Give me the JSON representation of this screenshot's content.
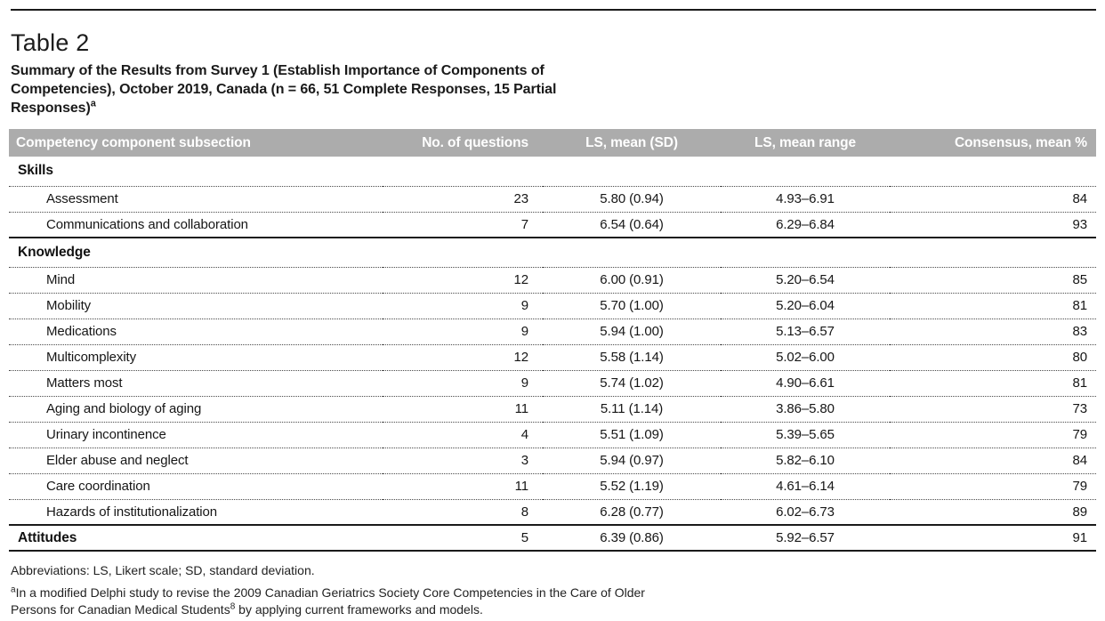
{
  "header": {
    "label": "Table 2",
    "caption_line1": "Summary of the Results from Survey 1 (Establish Importance of Components of",
    "caption_line2": "Competencies), October 2019, Canada (n = 66, 51 Complete Responses, 15 Partial",
    "caption_line3": "Responses)",
    "caption_note": "a"
  },
  "table": {
    "columns": [
      "Competency component subsection",
      "No. of questions",
      "LS, mean (SD)",
      "LS, mean range",
      "Consensus, mean %"
    ],
    "rows": [
      {
        "kind": "section",
        "label": "Skills"
      },
      {
        "kind": "item",
        "label": "Assessment",
        "questions": "23",
        "ls_mean_sd": "5.80 (0.94)",
        "ls_mean_range": "4.93–6.91",
        "consensus": "84"
      },
      {
        "kind": "item",
        "label": "Communications and collaboration",
        "questions": "7",
        "ls_mean_sd": "6.54 (0.64)",
        "ls_mean_range": "6.29–6.84",
        "consensus": "93"
      },
      {
        "kind": "section",
        "label": "Knowledge"
      },
      {
        "kind": "item",
        "label": "Mind",
        "questions": "12",
        "ls_mean_sd": "6.00 (0.91)",
        "ls_mean_range": "5.20–6.54",
        "consensus": "85"
      },
      {
        "kind": "item",
        "label": "Mobility",
        "questions": "9",
        "ls_mean_sd": "5.70 (1.00)",
        "ls_mean_range": "5.20–6.04",
        "consensus": "81"
      },
      {
        "kind": "item",
        "label": "Medications",
        "questions": "9",
        "ls_mean_sd": "5.94 (1.00)",
        "ls_mean_range": "5.13–6.57",
        "consensus": "83"
      },
      {
        "kind": "item",
        "label": "Multicomplexity",
        "questions": "12",
        "ls_mean_sd": "5.58 (1.14)",
        "ls_mean_range": "5.02–6.00",
        "consensus": "80"
      },
      {
        "kind": "item",
        "label": "Matters most",
        "questions": "9",
        "ls_mean_sd": "5.74 (1.02)",
        "ls_mean_range": "4.90–6.61",
        "consensus": "81"
      },
      {
        "kind": "item",
        "label": "Aging and biology of aging",
        "questions": "11",
        "ls_mean_sd": "5.11 (1.14)",
        "ls_mean_range": "3.86–5.80",
        "consensus": "73"
      },
      {
        "kind": "item",
        "label": "Urinary incontinence",
        "questions": "4",
        "ls_mean_sd": "5.51 (1.09)",
        "ls_mean_range": "5.39–5.65",
        "consensus": "79"
      },
      {
        "kind": "item",
        "label": "Elder abuse and neglect",
        "questions": "3",
        "ls_mean_sd": "5.94 (0.97)",
        "ls_mean_range": "5.82–6.10",
        "consensus": "84"
      },
      {
        "kind": "item",
        "label": "Care coordination",
        "questions": "11",
        "ls_mean_sd": "5.52 (1.19)",
        "ls_mean_range": "4.61–6.14",
        "consensus": "79"
      },
      {
        "kind": "item",
        "label": "Hazards of institutionalization",
        "questions": "8",
        "ls_mean_sd": "6.28 (0.77)",
        "ls_mean_range": "6.02–6.73",
        "consensus": "89"
      },
      {
        "kind": "section-data",
        "label": "Attitudes",
        "questions": "5",
        "ls_mean_sd": "6.39 (0.86)",
        "ls_mean_range": "5.92–6.57",
        "consensus": "91"
      }
    ]
  },
  "footnotes": {
    "abbreviations": "Abbreviations: LS, Likert scale; SD, standard deviation.",
    "note_a": {
      "marker": "a",
      "line1": "In a modified Delphi study to revise the 2009 Canadian Geriatrics Society Core Competencies in the Care of Older",
      "line2_pre": "Persons for Canadian Medical Students",
      "line2_ref": "8",
      "line2_post": " by applying current frameworks and models."
    }
  },
  "colors": {
    "header_bar": "#acacac",
    "header_text": "#ffffff",
    "ink": "#1a1a1a"
  }
}
